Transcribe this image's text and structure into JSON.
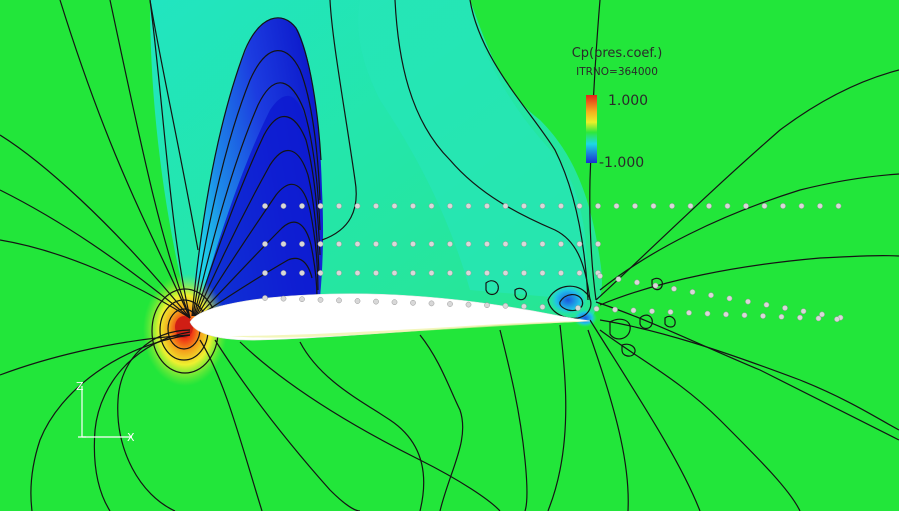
{
  "legend": {
    "title": "Cp(pres.coef.)",
    "iteration": "ITRNO=364000",
    "max_label": "1.000",
    "min_label": "-1.000",
    "max_value": 1.0,
    "min_value": -1.0
  },
  "axes_triad": {
    "vertical_label": "Z",
    "horizontal_label": "X"
  },
  "colors": {
    "background_green": "#1fe835",
    "freestream_green": "#22e63a",
    "high_pressure_red": "#e8261a",
    "high_pressure_yellow": "#f0e21e",
    "low_pressure_blue": "#1a2fd6",
    "low_pressure_cyan": "#1ee0e8",
    "airfoil_white": "#ffffff",
    "contour_black": "#141414",
    "probe_grey": "#d8d8d8"
  }
}
